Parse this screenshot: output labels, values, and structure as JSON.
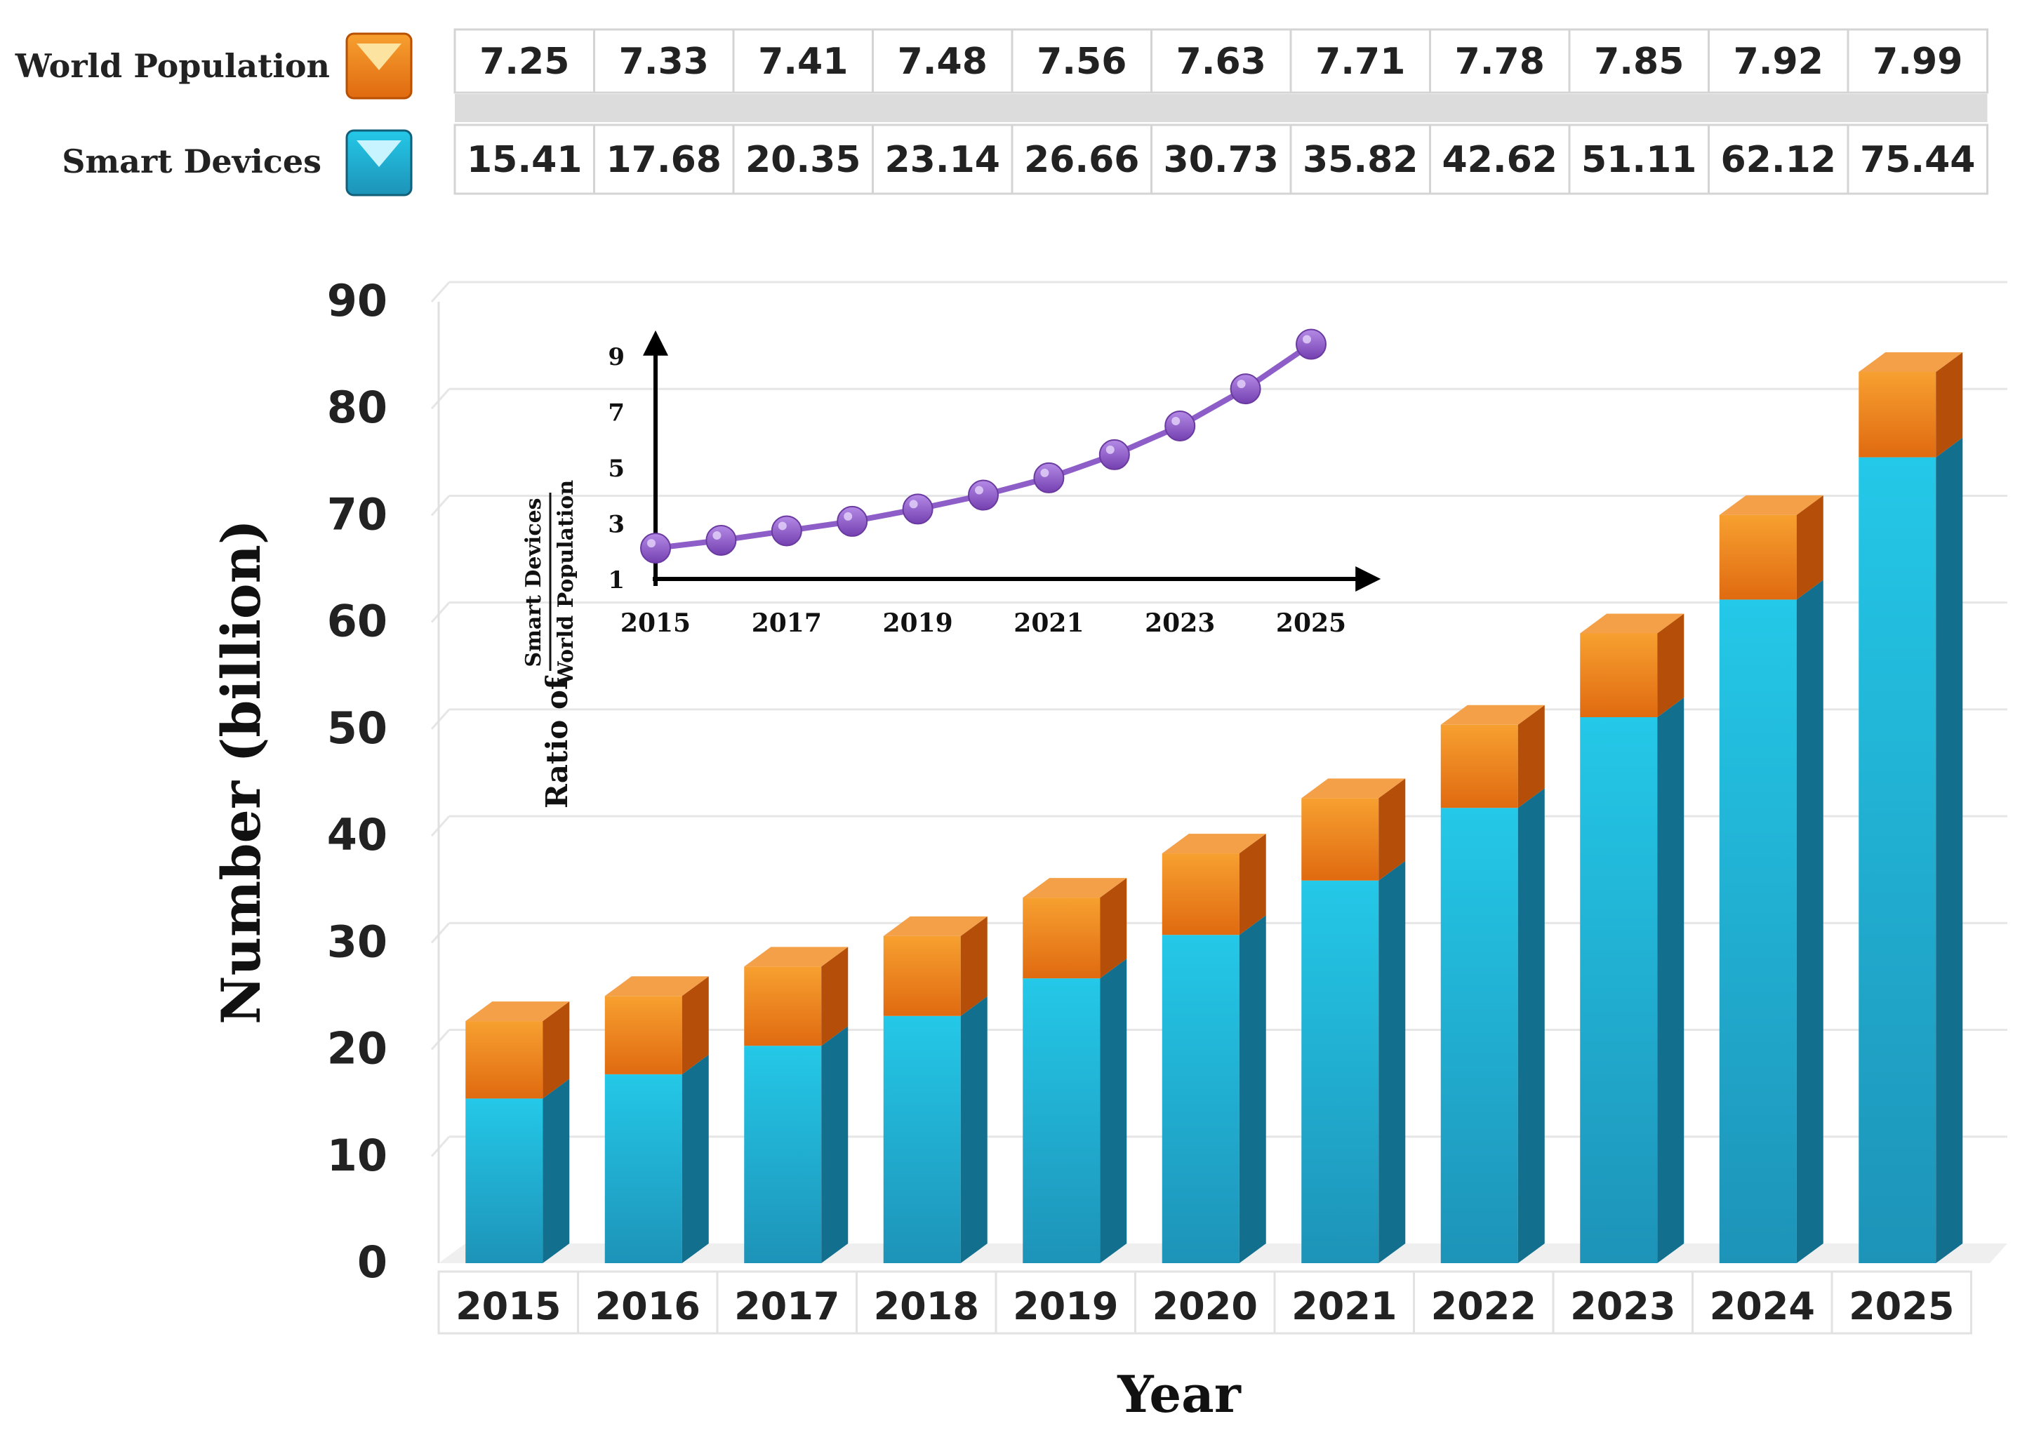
{
  "colors": {
    "population_top": "#f29020",
    "population_bottom": "#d96010",
    "devices_top": "#22c4e4",
    "devices_bottom": "#1a8fb4",
    "ratio_line": "#8e5ec8"
  },
  "legend": [
    {
      "name": "World Population",
      "icon": "orange-triangle-icon"
    },
    {
      "name": "Smart Devices",
      "icon": "blue-triangle-icon"
    }
  ],
  "chart_data": {
    "type": "bar",
    "stacked": true,
    "categories": [
      "2015",
      "2016",
      "2017",
      "2018",
      "2019",
      "2020",
      "2021",
      "2022",
      "2023",
      "2024",
      "2025"
    ],
    "series": [
      {
        "name": "World Population",
        "values": [
          "7.25",
          "7.33",
          "7.41",
          "7.48",
          "7.56",
          "7.63",
          "7.71",
          "7.78",
          "7.85",
          "7.92",
          "7.99"
        ]
      },
      {
        "name": "Smart Devices",
        "values": [
          "15.41",
          "17.68",
          "20.35",
          "23.14",
          "26.66",
          "30.73",
          "35.82",
          "42.62",
          "51.11",
          "62.12",
          "75.44"
        ]
      }
    ],
    "ylabel": "Number (billion)",
    "xlabel": "Year",
    "ylim": [
      0,
      90
    ],
    "yticks": [
      "0",
      "10",
      "20",
      "30",
      "40",
      "50",
      "60",
      "70",
      "80",
      "90"
    ],
    "grid": true,
    "inset": {
      "type": "line",
      "ylabel_prefix": "Ratio of",
      "ratio_numerator": "Smart Devices",
      "ratio_denominator": "World Population",
      "xticks": [
        "2015",
        "2017",
        "2019",
        "2021",
        "2023",
        "2025"
      ],
      "yticks": [
        "1",
        "3",
        "5",
        "7",
        "9"
      ],
      "ylim": [
        1,
        10
      ],
      "x": [
        2015,
        2016,
        2017,
        2018,
        2019,
        2020,
        2021,
        2022,
        2023,
        2024,
        2025
      ],
      "values": [
        2.13,
        2.41,
        2.75,
        3.09,
        3.53,
        4.03,
        4.65,
        5.48,
        6.51,
        7.84,
        9.44
      ]
    }
  }
}
